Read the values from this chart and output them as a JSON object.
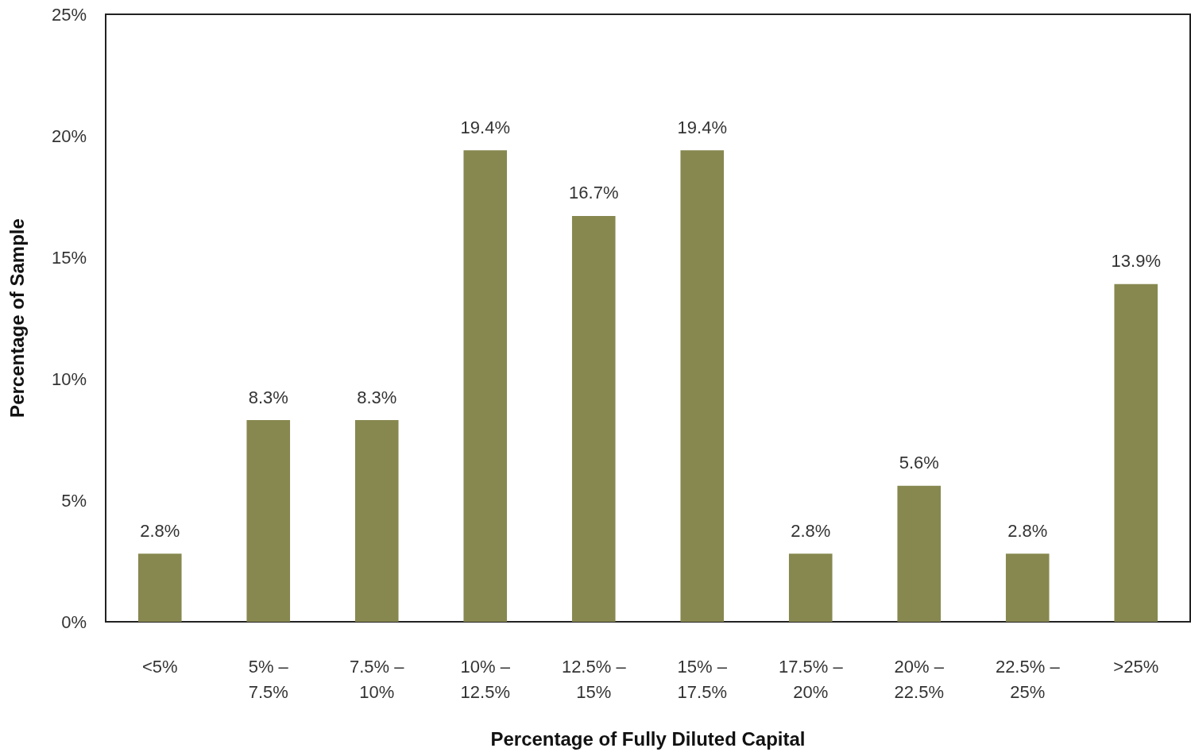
{
  "chart_data": {
    "type": "bar",
    "xlabel": "Percentage of Fully Diluted Capital",
    "ylabel": "Percentage of Sample",
    "categories": [
      "<5%",
      "5% – 7.5%",
      "7.5% – 10%",
      "10% – 12.5%",
      "12.5% – 15%",
      "15% – 17.5%",
      "17.5% – 20%",
      "20% – 22.5%",
      "22.5% – 25%",
      ">25%"
    ],
    "values": [
      2.8,
      8.3,
      8.3,
      19.4,
      16.7,
      19.4,
      2.8,
      5.6,
      2.8,
      13.9
    ],
    "value_labels": [
      "2.8%",
      "8.3%",
      "8.3%",
      "19.4%",
      "16.7%",
      "19.4%",
      "2.8%",
      "5.6%",
      "2.8%",
      "13.9%"
    ],
    "color": "#87884f",
    "ylim": [
      0,
      25
    ],
    "yticks": [
      {
        "value": 0,
        "label": "0%"
      },
      {
        "value": 5,
        "label": "5%"
      },
      {
        "value": 10,
        "label": "10%"
      },
      {
        "value": 15,
        "label": "15%"
      },
      {
        "value": 20,
        "label": "20%"
      },
      {
        "value": 25,
        "label": "25%"
      }
    ],
    "grid": false
  }
}
